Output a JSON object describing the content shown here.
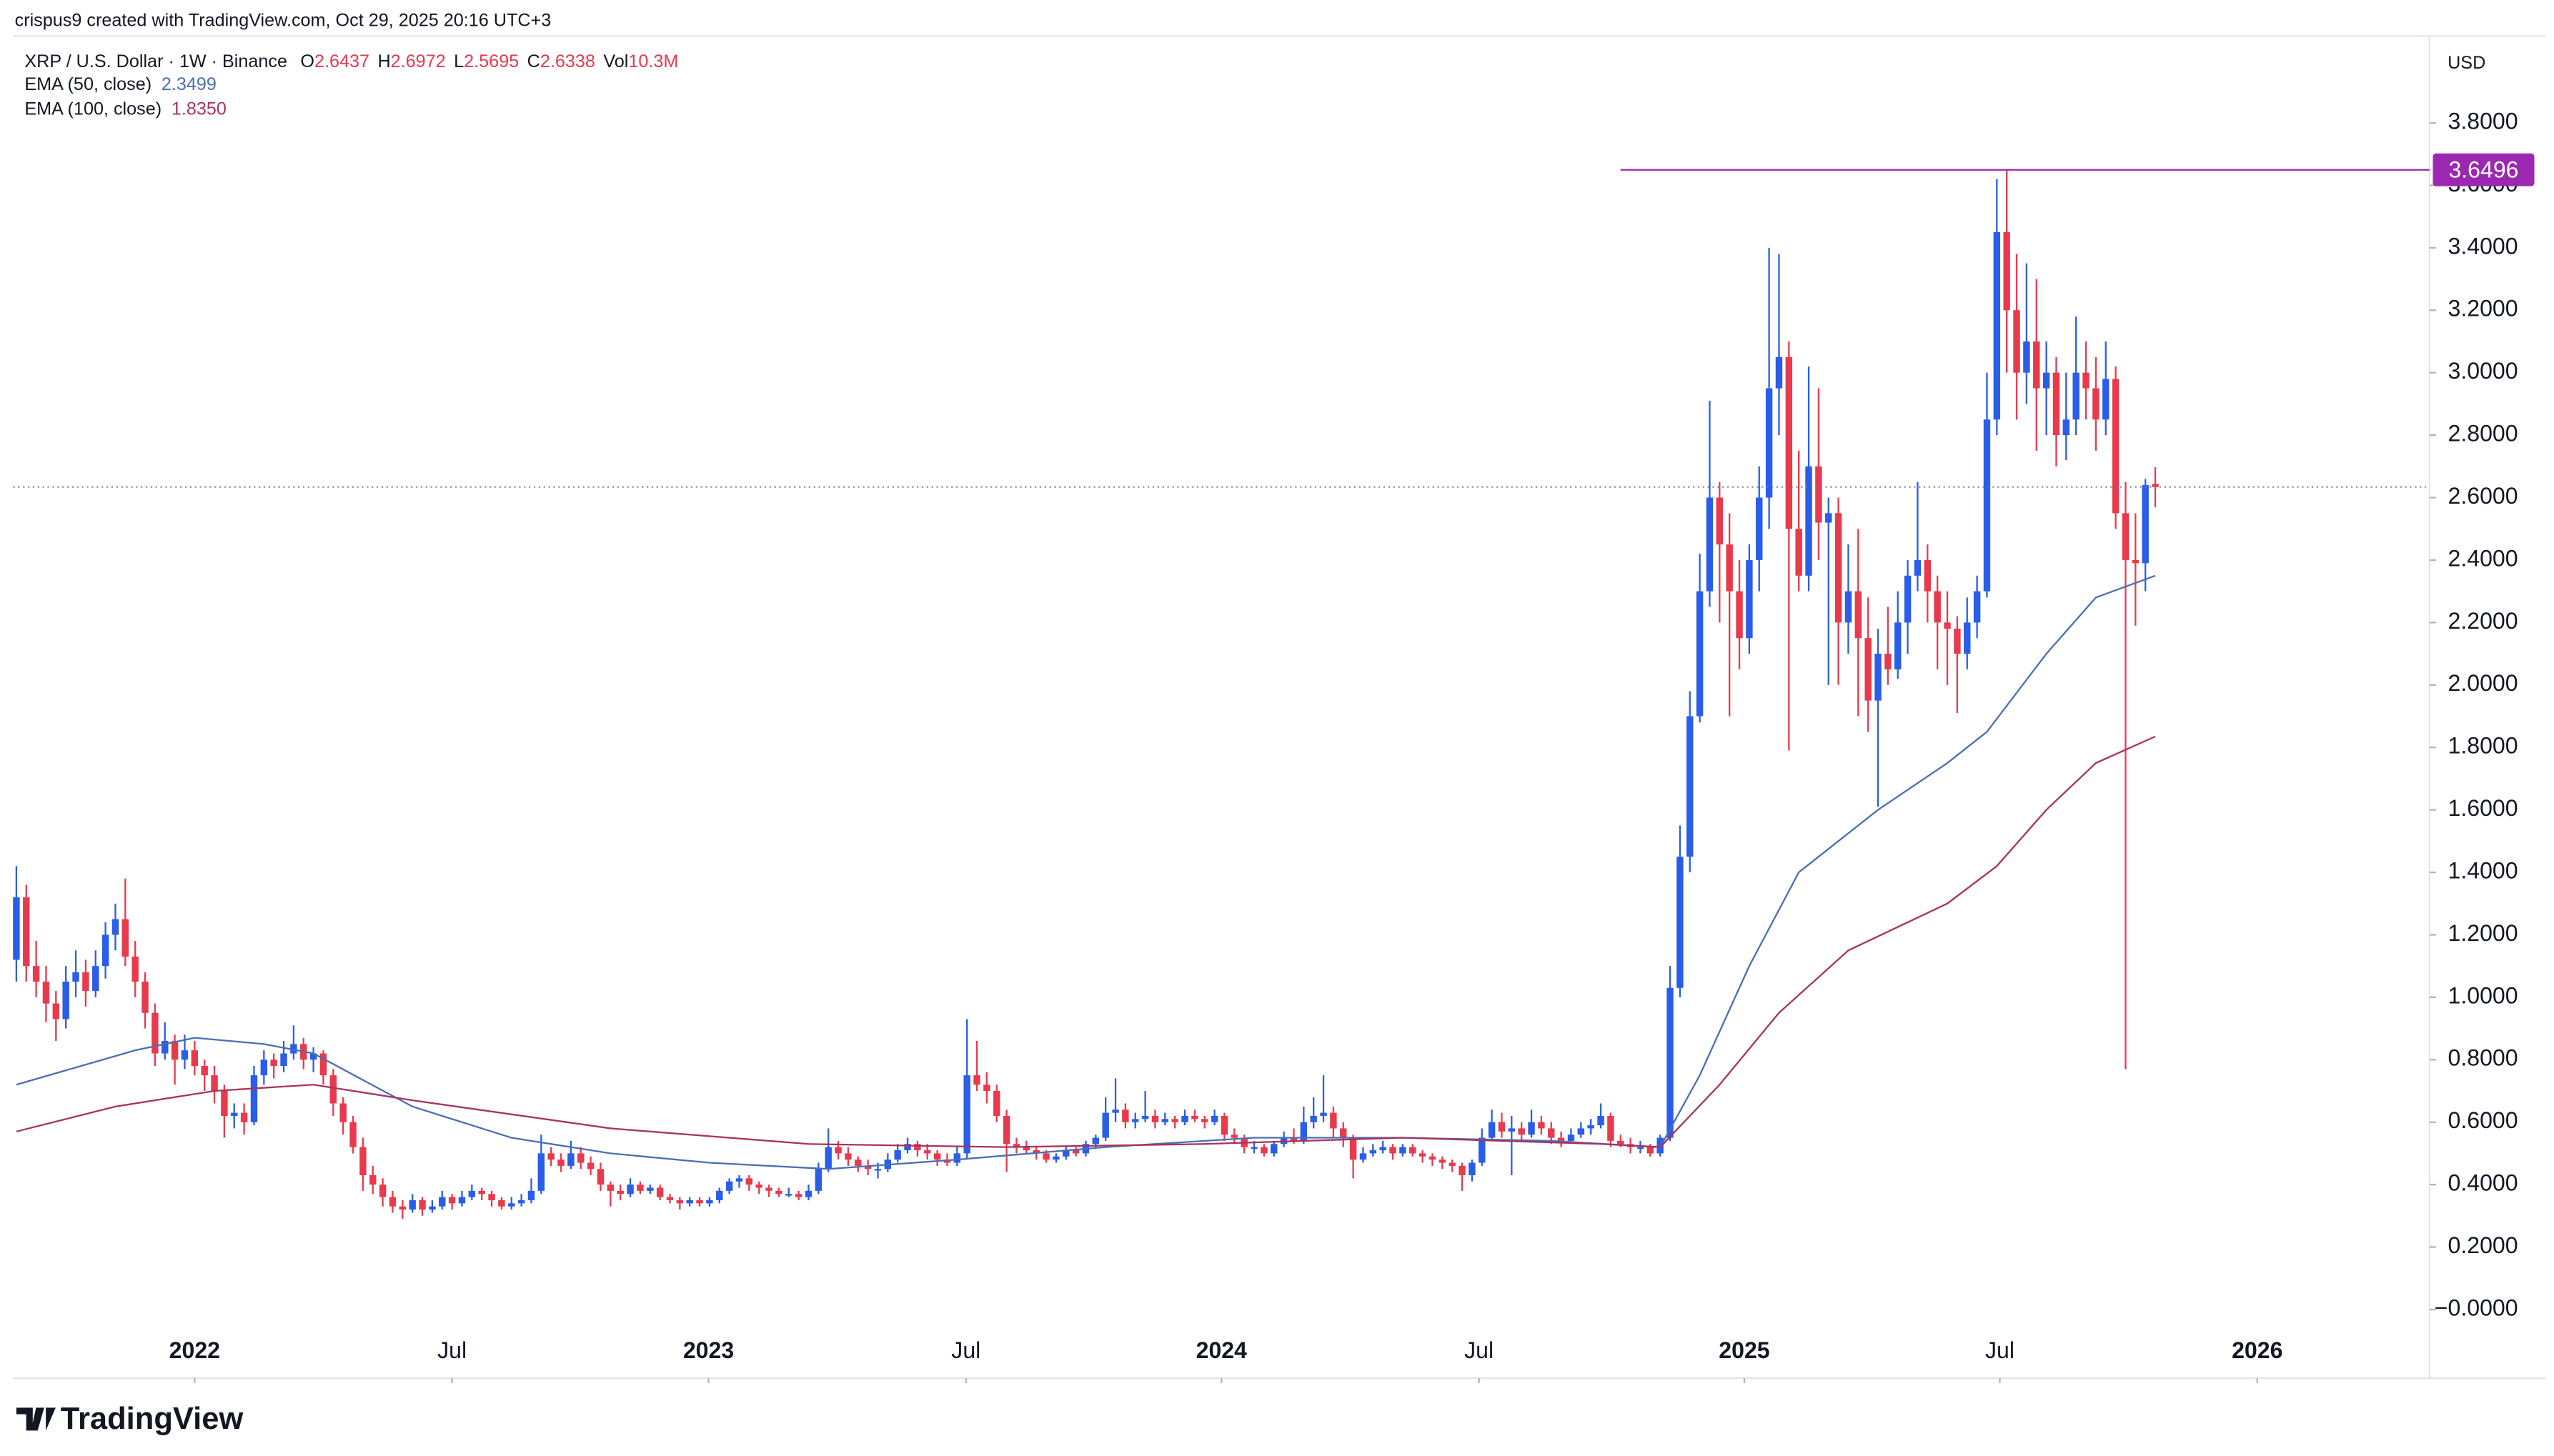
{
  "chart_data": {
    "type": "candlestick",
    "credit": "crispus9 created with TradingView.com, Oct 29, 2025 20:16 UTC+3",
    "title": "XRP / U.S. Dollar · 1W · Binance",
    "ohlc_labels": [
      "O",
      "H",
      "L",
      "C"
    ],
    "vol_label": "Vol",
    "vol": "10.3M",
    "currency": "USD",
    "up_color": "#2a5de8",
    "down_color": "#e8394d",
    "xlim": [
      -0.33,
      243.7
    ],
    "xticks": [
      {
        "value": 18,
        "label": "2022"
      },
      {
        "value": 44,
        "label": "Jul"
      },
      {
        "value": 69.9,
        "label": "2023"
      },
      {
        "value": 95.9,
        "label": "Jul"
      },
      {
        "value": 121.7,
        "label": "2024"
      },
      {
        "value": 147.7,
        "label": "Jul"
      },
      {
        "value": 174.5,
        "label": "2025"
      },
      {
        "value": 200.3,
        "label": "Jul"
      },
      {
        "value": 226.3,
        "label": "2026"
      }
    ],
    "ylim": [
      -0.22,
      4.078
    ],
    "yticks": [
      {
        "value": 0,
        "label": "−0.0000"
      },
      {
        "value": 0.2,
        "label": "0.2000"
      },
      {
        "value": 0.4,
        "label": "0.4000"
      },
      {
        "value": 0.6,
        "label": "0.6000"
      },
      {
        "value": 0.8,
        "label": "0.8000"
      },
      {
        "value": 1,
        "label": "1.0000"
      },
      {
        "value": 1.2,
        "label": "1.2000"
      },
      {
        "value": 1.4,
        "label": "1.4000"
      },
      {
        "value": 1.6,
        "label": "1.6000"
      },
      {
        "value": 1.8,
        "label": "1.8000"
      },
      {
        "value": 2,
        "label": "2.0000"
      },
      {
        "value": 2.2,
        "label": "2.2000"
      },
      {
        "value": 2.4,
        "label": "2.4000"
      },
      {
        "value": 2.6,
        "label": "2.6000"
      },
      {
        "value": 2.8,
        "label": "2.8000"
      },
      {
        "value": 3,
        "label": "3.0000"
      },
      {
        "value": 3.2,
        "label": "3.2000"
      },
      {
        "value": 3.4,
        "label": "3.4000"
      },
      {
        "value": 3.6,
        "label": "3.6000"
      },
      {
        "value": 3.8,
        "label": "3.8000"
      }
    ],
    "hline": {
      "value": 3.6496,
      "from": 162,
      "color": "#9c27b0"
    },
    "candles": [
      [
        1.12,
        1.42,
        1.05,
        1.32
      ],
      [
        1.32,
        1.36,
        1.05,
        1.1
      ],
      [
        1.1,
        1.18,
        1.0,
        1.05
      ],
      [
        1.05,
        1.1,
        0.92,
        0.98
      ],
      [
        0.98,
        1.02,
        0.86,
        0.93
      ],
      [
        0.93,
        1.1,
        0.9,
        1.05
      ],
      [
        1.05,
        1.15,
        1.0,
        1.08
      ],
      [
        1.08,
        1.12,
        0.97,
        1.02
      ],
      [
        1.02,
        1.15,
        1.0,
        1.1
      ],
      [
        1.1,
        1.24,
        1.06,
        1.2
      ],
      [
        1.2,
        1.3,
        1.15,
        1.25
      ],
      [
        1.25,
        1.38,
        1.1,
        1.13
      ],
      [
        1.13,
        1.18,
        1.0,
        1.05
      ],
      [
        1.05,
        1.08,
        0.9,
        0.95
      ],
      [
        0.95,
        0.98,
        0.78,
        0.82
      ],
      [
        0.82,
        0.92,
        0.8,
        0.86
      ],
      [
        0.86,
        0.88,
        0.72,
        0.8
      ],
      [
        0.8,
        0.88,
        0.77,
        0.83
      ],
      [
        0.83,
        0.86,
        0.75,
        0.78
      ],
      [
        0.78,
        0.8,
        0.7,
        0.75
      ],
      [
        0.75,
        0.78,
        0.66,
        0.7
      ],
      [
        0.7,
        0.72,
        0.55,
        0.62
      ],
      [
        0.62,
        0.66,
        0.58,
        0.63
      ],
      [
        0.63,
        0.66,
        0.56,
        0.6
      ],
      [
        0.6,
        0.78,
        0.59,
        0.75
      ],
      [
        0.75,
        0.83,
        0.72,
        0.8
      ],
      [
        0.8,
        0.82,
        0.74,
        0.78
      ],
      [
        0.78,
        0.86,
        0.76,
        0.82
      ],
      [
        0.82,
        0.91,
        0.8,
        0.85
      ],
      [
        0.85,
        0.87,
        0.77,
        0.8
      ],
      [
        0.8,
        0.84,
        0.76,
        0.82
      ],
      [
        0.82,
        0.83,
        0.72,
        0.75
      ],
      [
        0.75,
        0.77,
        0.62,
        0.66
      ],
      [
        0.66,
        0.68,
        0.56,
        0.6
      ],
      [
        0.6,
        0.62,
        0.5,
        0.52
      ],
      [
        0.52,
        0.55,
        0.38,
        0.43
      ],
      [
        0.43,
        0.46,
        0.37,
        0.4
      ],
      [
        0.4,
        0.42,
        0.33,
        0.36
      ],
      [
        0.36,
        0.38,
        0.31,
        0.33
      ],
      [
        0.33,
        0.35,
        0.29,
        0.32
      ],
      [
        0.32,
        0.37,
        0.31,
        0.35
      ],
      [
        0.35,
        0.36,
        0.3,
        0.32
      ],
      [
        0.32,
        0.35,
        0.31,
        0.33
      ],
      [
        0.33,
        0.38,
        0.32,
        0.36
      ],
      [
        0.36,
        0.37,
        0.32,
        0.34
      ],
      [
        0.34,
        0.38,
        0.33,
        0.36
      ],
      [
        0.36,
        0.4,
        0.35,
        0.38
      ],
      [
        0.38,
        0.39,
        0.35,
        0.37
      ],
      [
        0.37,
        0.38,
        0.33,
        0.35
      ],
      [
        0.35,
        0.36,
        0.32,
        0.33
      ],
      [
        0.33,
        0.36,
        0.32,
        0.34
      ],
      [
        0.34,
        0.37,
        0.33,
        0.35
      ],
      [
        0.35,
        0.42,
        0.34,
        0.38
      ],
      [
        0.38,
        0.56,
        0.37,
        0.5
      ],
      [
        0.5,
        0.52,
        0.46,
        0.48
      ],
      [
        0.48,
        0.5,
        0.44,
        0.46
      ],
      [
        0.46,
        0.54,
        0.45,
        0.5
      ],
      [
        0.5,
        0.52,
        0.45,
        0.47
      ],
      [
        0.47,
        0.49,
        0.43,
        0.45
      ],
      [
        0.45,
        0.47,
        0.38,
        0.4
      ],
      [
        0.4,
        0.41,
        0.33,
        0.38
      ],
      [
        0.38,
        0.4,
        0.35,
        0.37
      ],
      [
        0.37,
        0.42,
        0.36,
        0.4
      ],
      [
        0.4,
        0.41,
        0.37,
        0.38
      ],
      [
        0.38,
        0.4,
        0.37,
        0.39
      ],
      [
        0.39,
        0.4,
        0.35,
        0.36
      ],
      [
        0.36,
        0.37,
        0.34,
        0.35
      ],
      [
        0.35,
        0.36,
        0.32,
        0.34
      ],
      [
        0.34,
        0.36,
        0.33,
        0.35
      ],
      [
        0.35,
        0.36,
        0.33,
        0.34
      ],
      [
        0.34,
        0.36,
        0.33,
        0.35
      ],
      [
        0.35,
        0.39,
        0.34,
        0.38
      ],
      [
        0.38,
        0.42,
        0.37,
        0.41
      ],
      [
        0.41,
        0.43,
        0.39,
        0.42
      ],
      [
        0.42,
        0.43,
        0.38,
        0.4
      ],
      [
        0.4,
        0.41,
        0.37,
        0.39
      ],
      [
        0.39,
        0.4,
        0.36,
        0.38
      ],
      [
        0.38,
        0.39,
        0.36,
        0.37
      ],
      [
        0.37,
        0.39,
        0.36,
        0.37
      ],
      [
        0.37,
        0.38,
        0.35,
        0.36
      ],
      [
        0.36,
        0.4,
        0.35,
        0.38
      ],
      [
        0.38,
        0.47,
        0.37,
        0.45
      ],
      [
        0.45,
        0.58,
        0.44,
        0.52
      ],
      [
        0.52,
        0.54,
        0.48,
        0.5
      ],
      [
        0.5,
        0.52,
        0.46,
        0.48
      ],
      [
        0.48,
        0.49,
        0.44,
        0.46
      ],
      [
        0.46,
        0.48,
        0.43,
        0.45
      ],
      [
        0.45,
        0.47,
        0.42,
        0.45
      ],
      [
        0.45,
        0.5,
        0.44,
        0.48
      ],
      [
        0.48,
        0.53,
        0.47,
        0.51
      ],
      [
        0.51,
        0.55,
        0.5,
        0.53
      ],
      [
        0.53,
        0.54,
        0.49,
        0.51
      ],
      [
        0.51,
        0.53,
        0.48,
        0.5
      ],
      [
        0.5,
        0.51,
        0.46,
        0.48
      ],
      [
        0.48,
        0.5,
        0.46,
        0.47
      ],
      [
        0.47,
        0.52,
        0.46,
        0.5
      ],
      [
        0.5,
        0.93,
        0.48,
        0.75
      ],
      [
        0.75,
        0.86,
        0.7,
        0.72
      ],
      [
        0.72,
        0.76,
        0.66,
        0.7
      ],
      [
        0.7,
        0.72,
        0.6,
        0.62
      ],
      [
        0.62,
        0.64,
        0.44,
        0.53
      ],
      [
        0.53,
        0.55,
        0.5,
        0.52
      ],
      [
        0.52,
        0.54,
        0.5,
        0.51
      ],
      [
        0.51,
        0.52,
        0.48,
        0.5
      ],
      [
        0.5,
        0.51,
        0.47,
        0.48
      ],
      [
        0.48,
        0.5,
        0.47,
        0.49
      ],
      [
        0.49,
        0.52,
        0.48,
        0.51
      ],
      [
        0.51,
        0.52,
        0.49,
        0.5
      ],
      [
        0.5,
        0.54,
        0.49,
        0.53
      ],
      [
        0.53,
        0.56,
        0.52,
        0.55
      ],
      [
        0.55,
        0.68,
        0.54,
        0.63
      ],
      [
        0.63,
        0.74,
        0.6,
        0.64
      ],
      [
        0.64,
        0.66,
        0.58,
        0.6
      ],
      [
        0.6,
        0.63,
        0.58,
        0.61
      ],
      [
        0.61,
        0.7,
        0.6,
        0.62
      ],
      [
        0.62,
        0.64,
        0.58,
        0.6
      ],
      [
        0.6,
        0.63,
        0.59,
        0.61
      ],
      [
        0.61,
        0.62,
        0.58,
        0.6
      ],
      [
        0.6,
        0.64,
        0.59,
        0.62
      ],
      [
        0.62,
        0.64,
        0.6,
        0.61
      ],
      [
        0.61,
        0.62,
        0.58,
        0.6
      ],
      [
        0.6,
        0.64,
        0.59,
        0.62
      ],
      [
        0.62,
        0.63,
        0.54,
        0.56
      ],
      [
        0.56,
        0.58,
        0.53,
        0.55
      ],
      [
        0.55,
        0.56,
        0.5,
        0.52
      ],
      [
        0.52,
        0.54,
        0.5,
        0.52
      ],
      [
        0.52,
        0.53,
        0.49,
        0.5
      ],
      [
        0.5,
        0.54,
        0.49,
        0.53
      ],
      [
        0.53,
        0.57,
        0.52,
        0.55
      ],
      [
        0.55,
        0.58,
        0.53,
        0.54
      ],
      [
        0.54,
        0.65,
        0.53,
        0.6
      ],
      [
        0.6,
        0.68,
        0.58,
        0.62
      ],
      [
        0.62,
        0.75,
        0.6,
        0.63
      ],
      [
        0.63,
        0.65,
        0.55,
        0.58
      ],
      [
        0.58,
        0.6,
        0.52,
        0.55
      ],
      [
        0.55,
        0.56,
        0.42,
        0.48
      ],
      [
        0.48,
        0.52,
        0.47,
        0.5
      ],
      [
        0.5,
        0.53,
        0.49,
        0.51
      ],
      [
        0.51,
        0.54,
        0.5,
        0.52
      ],
      [
        0.52,
        0.53,
        0.48,
        0.5
      ],
      [
        0.5,
        0.53,
        0.49,
        0.52
      ],
      [
        0.52,
        0.53,
        0.49,
        0.5
      ],
      [
        0.5,
        0.51,
        0.47,
        0.49
      ],
      [
        0.49,
        0.5,
        0.46,
        0.48
      ],
      [
        0.48,
        0.49,
        0.45,
        0.47
      ],
      [
        0.47,
        0.48,
        0.44,
        0.46
      ],
      [
        0.46,
        0.47,
        0.38,
        0.43
      ],
      [
        0.43,
        0.48,
        0.41,
        0.47
      ],
      [
        0.47,
        0.58,
        0.46,
        0.55
      ],
      [
        0.55,
        0.64,
        0.54,
        0.6
      ],
      [
        0.6,
        0.63,
        0.55,
        0.57
      ],
      [
        0.57,
        0.62,
        0.43,
        0.58
      ],
      [
        0.58,
        0.6,
        0.54,
        0.56
      ],
      [
        0.56,
        0.64,
        0.55,
        0.6
      ],
      [
        0.6,
        0.62,
        0.56,
        0.58
      ],
      [
        0.58,
        0.6,
        0.53,
        0.55
      ],
      [
        0.55,
        0.57,
        0.52,
        0.54
      ],
      [
        0.54,
        0.58,
        0.53,
        0.56
      ],
      [
        0.56,
        0.6,
        0.55,
        0.58
      ],
      [
        0.58,
        0.61,
        0.56,
        0.59
      ],
      [
        0.59,
        0.66,
        0.58,
        0.62
      ],
      [
        0.62,
        0.63,
        0.52,
        0.54
      ],
      [
        0.54,
        0.56,
        0.52,
        0.53
      ],
      [
        0.53,
        0.55,
        0.5,
        0.52
      ],
      [
        0.52,
        0.54,
        0.5,
        0.52
      ],
      [
        0.52,
        0.53,
        0.49,
        0.5
      ],
      [
        0.5,
        0.56,
        0.49,
        0.55
      ],
      [
        0.55,
        1.1,
        0.54,
        1.03
      ],
      [
        1.03,
        1.55,
        1.0,
        1.45
      ],
      [
        1.45,
        1.98,
        1.4,
        1.9
      ],
      [
        1.9,
        2.42,
        1.88,
        2.3
      ],
      [
        2.3,
        2.91,
        2.25,
        2.6
      ],
      [
        2.6,
        2.65,
        2.2,
        2.45
      ],
      [
        2.45,
        2.55,
        1.9,
        2.3
      ],
      [
        2.3,
        2.4,
        2.05,
        2.15
      ],
      [
        2.15,
        2.45,
        2.1,
        2.4
      ],
      [
        2.4,
        2.7,
        2.3,
        2.6
      ],
      [
        2.6,
        3.4,
        2.5,
        2.95
      ],
      [
        2.95,
        3.38,
        2.8,
        3.05
      ],
      [
        3.05,
        3.1,
        1.79,
        2.5
      ],
      [
        2.5,
        2.75,
        2.3,
        2.35
      ],
      [
        2.35,
        3.02,
        2.3,
        2.7
      ],
      [
        2.7,
        2.95,
        2.4,
        2.52
      ],
      [
        2.52,
        2.6,
        2.0,
        2.55
      ],
      [
        2.55,
        2.6,
        2.0,
        2.2
      ],
      [
        2.2,
        2.45,
        2.1,
        2.3
      ],
      [
        2.3,
        2.5,
        1.9,
        2.15
      ],
      [
        2.15,
        2.28,
        1.85,
        1.95
      ],
      [
        1.95,
        2.18,
        1.61,
        2.1
      ],
      [
        2.1,
        2.25,
        2.0,
        2.05
      ],
      [
        2.05,
        2.3,
        2.02,
        2.2
      ],
      [
        2.2,
        2.4,
        2.1,
        2.35
      ],
      [
        2.35,
        2.65,
        2.3,
        2.4
      ],
      [
        2.4,
        2.45,
        2.2,
        2.3
      ],
      [
        2.3,
        2.35,
        2.05,
        2.2
      ],
      [
        2.2,
        2.3,
        2.0,
        2.18
      ],
      [
        2.18,
        2.22,
        1.91,
        2.1
      ],
      [
        2.1,
        2.28,
        2.05,
        2.2
      ],
      [
        2.2,
        2.35,
        2.15,
        2.3
      ],
      [
        2.3,
        3.0,
        2.28,
        2.85
      ],
      [
        2.85,
        3.62,
        2.8,
        3.45
      ],
      [
        3.45,
        3.6496,
        3.0,
        3.2
      ],
      [
        3.2,
        3.38,
        2.85,
        3.0
      ],
      [
        3.0,
        3.35,
        2.9,
        3.1
      ],
      [
        3.1,
        3.3,
        2.75,
        2.95
      ],
      [
        2.95,
        3.1,
        2.8,
        3.0
      ],
      [
        3.0,
        3.05,
        2.7,
        2.8
      ],
      [
        2.8,
        3.0,
        2.72,
        2.85
      ],
      [
        2.85,
        3.18,
        2.8,
        3.0
      ],
      [
        3.0,
        3.1,
        2.85,
        2.95
      ],
      [
        2.95,
        3.05,
        2.75,
        2.85
      ],
      [
        2.85,
        3.1,
        2.8,
        2.98
      ],
      [
        2.98,
        3.02,
        2.5,
        2.55
      ],
      [
        2.55,
        2.65,
        0.77,
        2.4
      ],
      [
        2.4,
        2.55,
        2.19,
        2.39
      ],
      [
        2.39,
        2.66,
        2.3,
        2.64
      ],
      [
        2.6437,
        2.6972,
        2.5695,
        2.6338
      ]
    ],
    "series": [
      {
        "name": "EMA (50, close)",
        "last_label": "2.3499",
        "color": "#4a6fb0",
        "x": [
          0,
          12,
          18,
          25,
          30,
          40,
          50,
          60,
          70,
          82,
          95,
          110,
          125,
          140,
          155,
          166,
          170,
          175,
          180,
          188,
          195,
          199,
          205,
          210,
          216
        ],
        "values": [
          0.72,
          0.83,
          0.87,
          0.85,
          0.82,
          0.65,
          0.55,
          0.5,
          0.47,
          0.45,
          0.48,
          0.52,
          0.55,
          0.55,
          0.54,
          0.52,
          0.75,
          1.1,
          1.4,
          1.6,
          1.75,
          1.85,
          2.1,
          2.28,
          2.3499
        ]
      },
      {
        "name": "EMA (100, close)",
        "last_label": "1.8350",
        "color": "#a8325e",
        "x": [
          0,
          10,
          20,
          30,
          40,
          60,
          80,
          100,
          120,
          140,
          160,
          166,
          172,
          178,
          185,
          195,
          200,
          205,
          210,
          216
        ],
        "values": [
          0.57,
          0.65,
          0.7,
          0.72,
          0.67,
          0.58,
          0.53,
          0.52,
          0.53,
          0.55,
          0.53,
          0.52,
          0.72,
          0.95,
          1.15,
          1.3,
          1.42,
          1.6,
          1.75,
          1.835
        ]
      }
    ],
    "brand": "TradingView"
  }
}
